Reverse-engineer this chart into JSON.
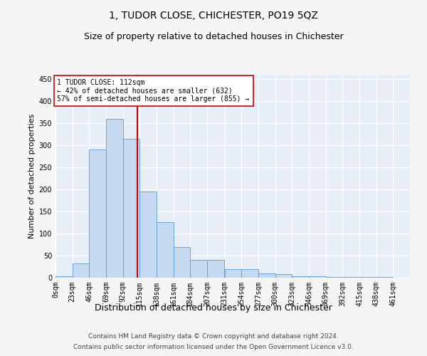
{
  "title": "1, TUDOR CLOSE, CHICHESTER, PO19 5QZ",
  "subtitle": "Size of property relative to detached houses in Chichester",
  "xlabel": "Distribution of detached houses by size in Chichester",
  "ylabel": "Number of detached properties",
  "bar_values": [
    4,
    33,
    290,
    360,
    315,
    196,
    126,
    70,
    40,
    40,
    20,
    20,
    10,
    8,
    4,
    3,
    2,
    2,
    2,
    1
  ],
  "bin_labels": [
    "0sqm",
    "23sqm",
    "46sqm",
    "69sqm",
    "92sqm",
    "115sqm",
    "138sqm",
    "161sqm",
    "184sqm",
    "207sqm",
    "231sqm",
    "254sqm",
    "277sqm",
    "300sqm",
    "323sqm",
    "346sqm",
    "369sqm",
    "392sqm",
    "415sqm",
    "438sqm",
    "461sqm"
  ],
  "bin_edges": [
    0,
    23,
    46,
    69,
    92,
    115,
    138,
    161,
    184,
    207,
    231,
    254,
    277,
    300,
    323,
    346,
    369,
    392,
    415,
    438,
    461
  ],
  "bar_color": "#c5d9f1",
  "bar_edge_color": "#5b9bd5",
  "property_value": 112,
  "vline_color": "#cc0000",
  "annotation_text": "1 TUDOR CLOSE: 112sqm\n← 42% of detached houses are smaller (632)\n57% of semi-detached houses are larger (855) →",
  "annotation_box_color": "#ffffff",
  "annotation_box_edge_color": "#cc0000",
  "ylim": [
    0,
    460
  ],
  "yticks": [
    0,
    50,
    100,
    150,
    200,
    250,
    300,
    350,
    400,
    450
  ],
  "background_color": "#e8eef7",
  "grid_color": "#ffffff",
  "fig_background": "#f5f5f5",
  "footer_line1": "Contains HM Land Registry data © Crown copyright and database right 2024.",
  "footer_line2": "Contains public sector information licensed under the Open Government Licence v3.0.",
  "title_fontsize": 10,
  "subtitle_fontsize": 9,
  "tick_fontsize": 7,
  "ylabel_fontsize": 8,
  "xlabel_fontsize": 9
}
